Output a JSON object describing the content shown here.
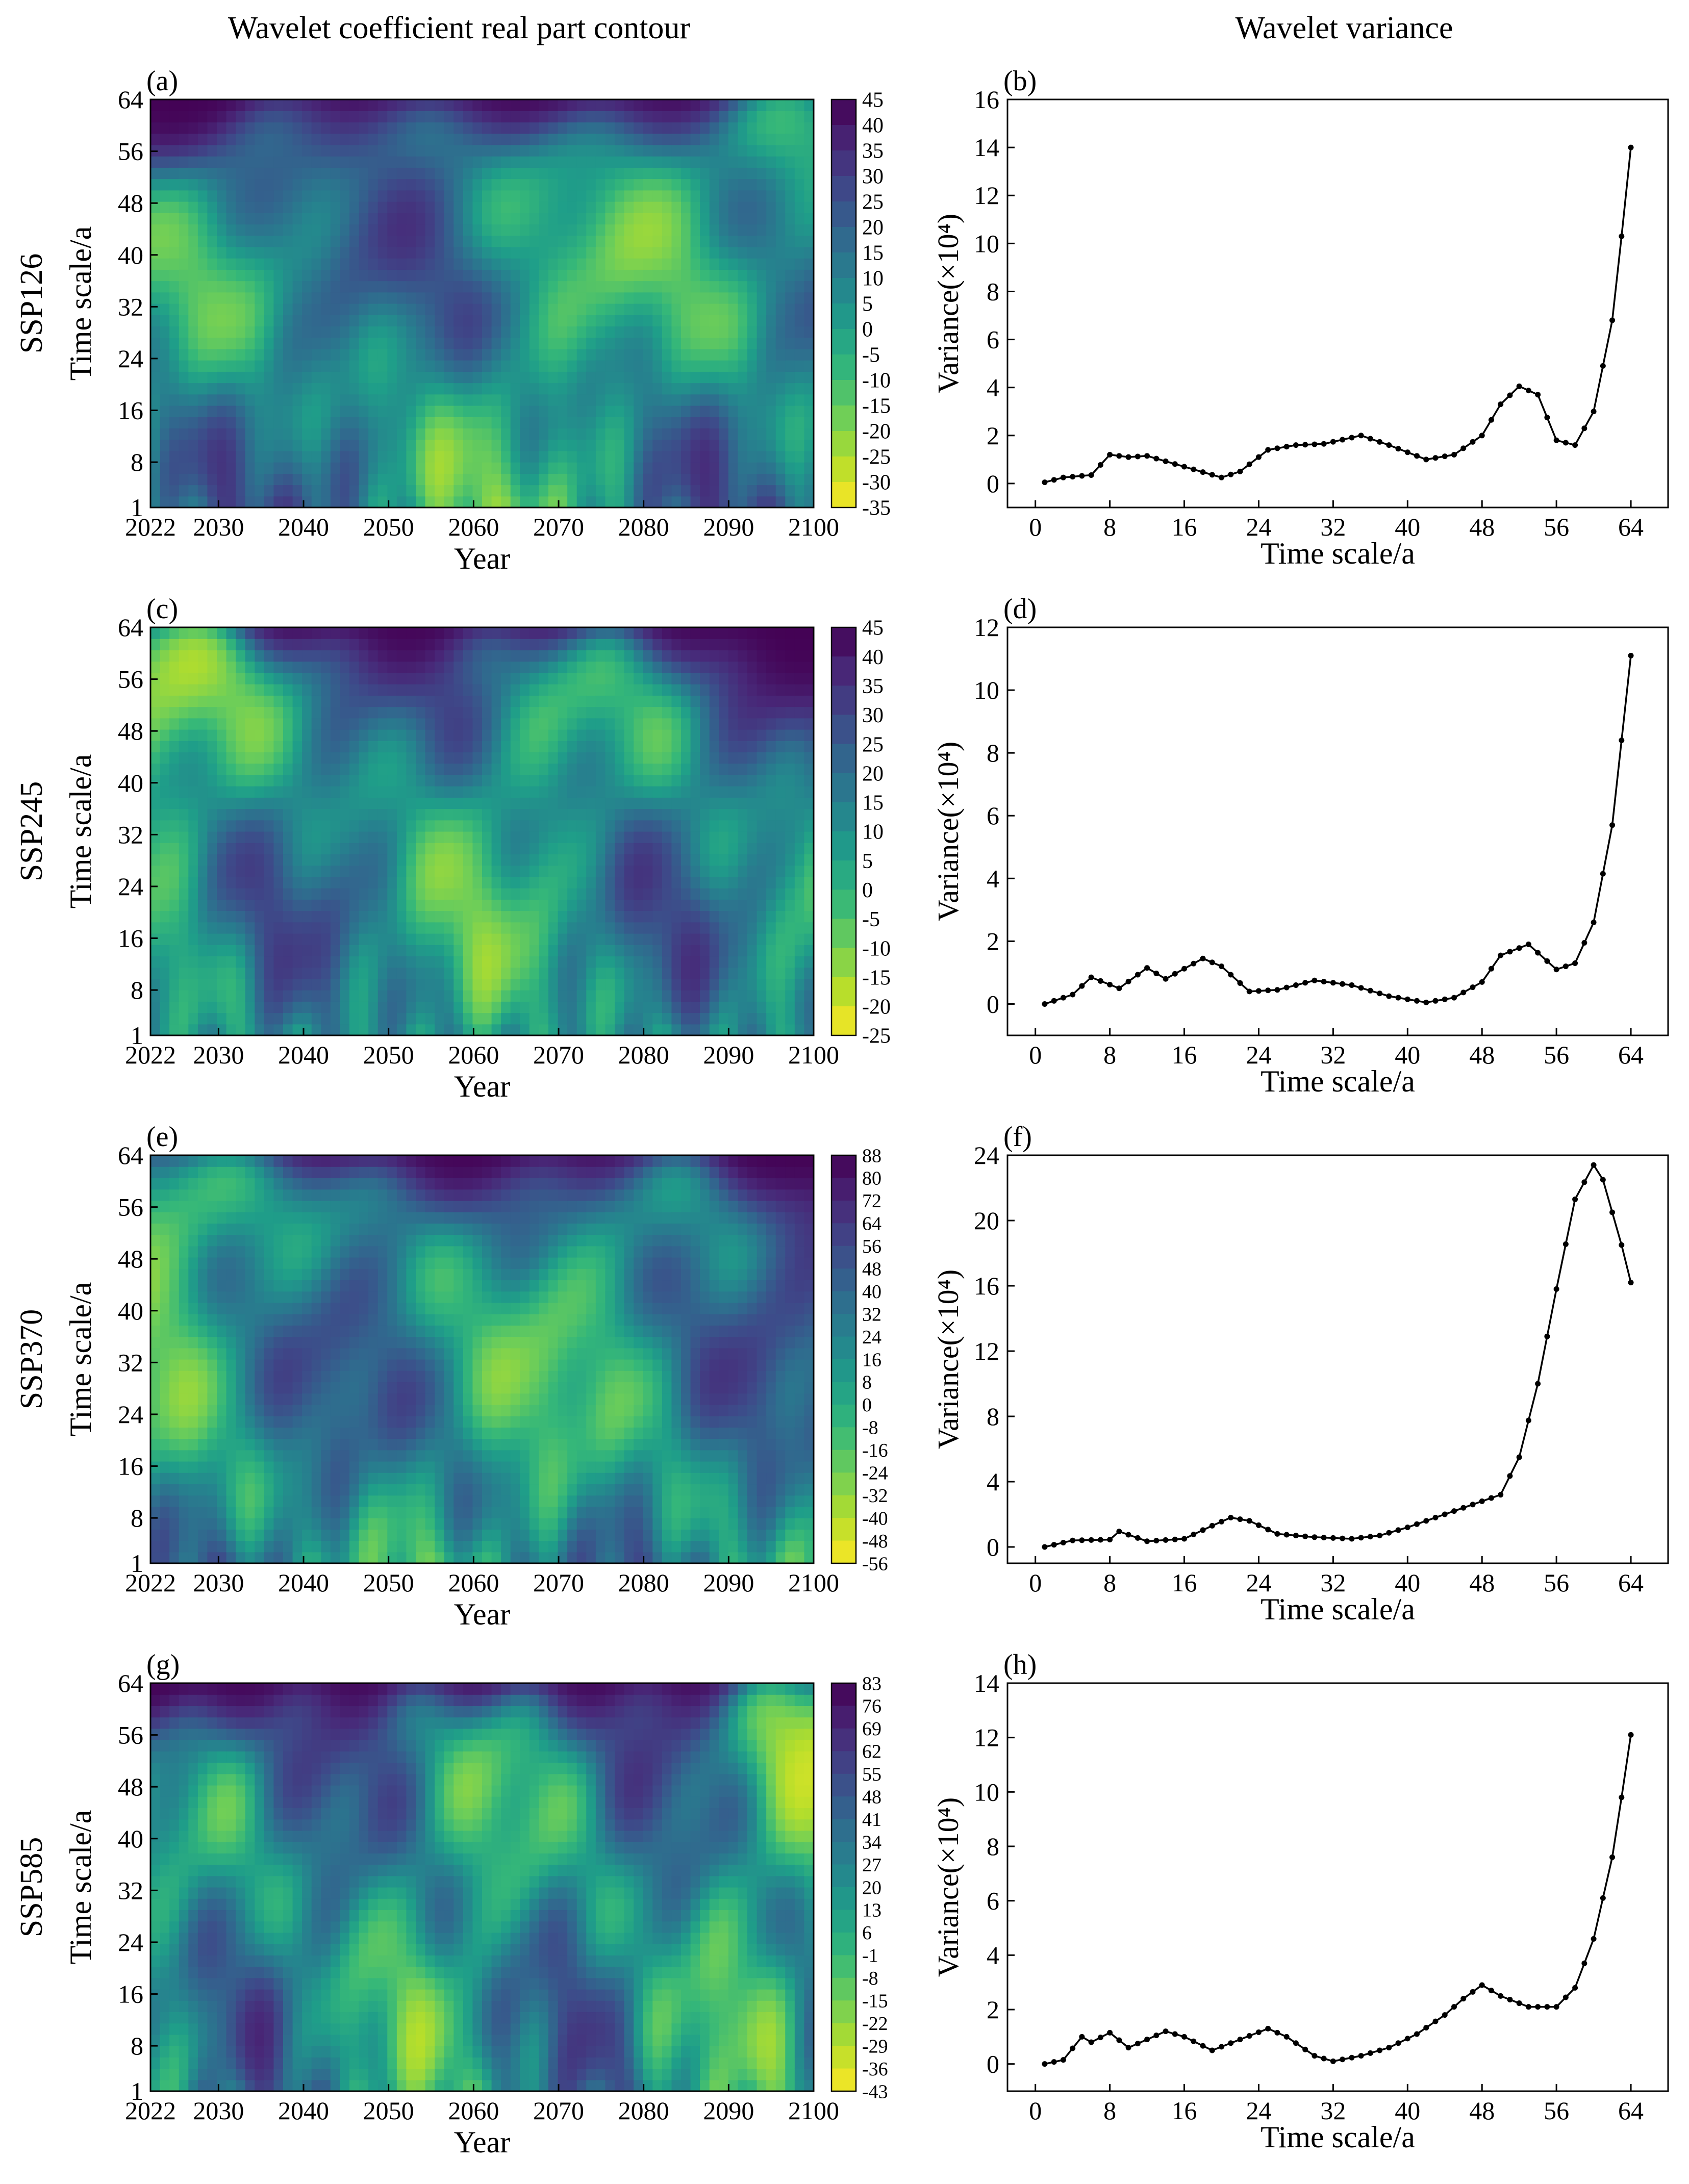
{
  "column_titles": [
    "Wavelet coefficient real part contour",
    "Wavelet variance"
  ],
  "contour_common": {
    "xlabel": "Year",
    "ylabel": "Time scale/a",
    "x_ticks": [
      "2022",
      "2030",
      "2040",
      "2050",
      "2060",
      "2070",
      "2080",
      "2090",
      "2100"
    ],
    "y_ticks": [
      "1",
      "8",
      "16",
      "24",
      "32",
      "40",
      "48",
      "56",
      "64"
    ],
    "colormap": [
      "#fde725",
      "#b5de2b",
      "#6ece58",
      "#35b779",
      "#1f9e89",
      "#26828e",
      "#31688e",
      "#3e4989",
      "#482878",
      "#440154"
    ]
  },
  "variance_common": {
    "xlabel": "Time scale/a",
    "ylabel": "Variance(×10⁴)",
    "x_ticks": [
      "0",
      "8",
      "16",
      "24",
      "32",
      "40",
      "48",
      "56",
      "64"
    ],
    "xlim": [
      -3,
      68
    ]
  },
  "chart_data": [
    {
      "type": "heatmap",
      "panel": "(a)",
      "row_label": "SSP126",
      "xlabel": "Year",
      "ylabel": "Time scale/a",
      "xlim": [
        2022,
        2100
      ],
      "ylim": [
        1,
        64
      ],
      "colorbar_ticks": [
        "45",
        "40",
        "35",
        "30",
        "25",
        "20",
        "15",
        "10",
        "5",
        "0",
        "-5",
        "-10",
        "-15",
        "-20",
        "-25",
        "-30",
        "-35"
      ],
      "clim": [
        -35,
        45
      ]
    },
    {
      "type": "line",
      "panel": "(b)",
      "xlabel": "Time scale/a",
      "ylabel": "Variance(×10⁴)",
      "ylim": [
        -1,
        16
      ],
      "y_ticks": [
        "0",
        "2",
        "4",
        "6",
        "8",
        "10",
        "12",
        "14",
        "16"
      ],
      "keypoints": [
        [
          1,
          0.05
        ],
        [
          3,
          0.25
        ],
        [
          6,
          0.35
        ],
        [
          8,
          1.2
        ],
        [
          10,
          1.1
        ],
        [
          12,
          1.15
        ],
        [
          16,
          0.7
        ],
        [
          20,
          0.25
        ],
        [
          22,
          0.5
        ],
        [
          25,
          1.4
        ],
        [
          28,
          1.6
        ],
        [
          31,
          1.65
        ],
        [
          35,
          2.0
        ],
        [
          38,
          1.6
        ],
        [
          42,
          1.0
        ],
        [
          45,
          1.2
        ],
        [
          48,
          2.0
        ],
        [
          50,
          3.3
        ],
        [
          52,
          4.05
        ],
        [
          54,
          3.7
        ],
        [
          56,
          1.8
        ],
        [
          58,
          1.6
        ],
        [
          60,
          3.0
        ],
        [
          62,
          6.8
        ],
        [
          63,
          10.3
        ],
        [
          64,
          14.0
        ]
      ]
    },
    {
      "type": "heatmap",
      "panel": "(c)",
      "row_label": "SSP245",
      "xlabel": "Year",
      "ylabel": "Time scale/a",
      "xlim": [
        2022,
        2100
      ],
      "ylim": [
        1,
        64
      ],
      "colorbar_ticks": [
        "45",
        "40",
        "35",
        "30",
        "25",
        "20",
        "15",
        "10",
        "5",
        "0",
        "-5",
        "-10",
        "-15",
        "-20",
        "-25"
      ],
      "clim": [
        -25,
        45
      ]
    },
    {
      "type": "line",
      "panel": "(d)",
      "xlabel": "Time scale/a",
      "ylabel": "Variance(×10⁴)",
      "ylim": [
        -1,
        12
      ],
      "y_ticks": [
        "0",
        "2",
        "4",
        "6",
        "8",
        "10",
        "12"
      ],
      "keypoints": [
        [
          1,
          0.0
        ],
        [
          4,
          0.3
        ],
        [
          6,
          0.85
        ],
        [
          9,
          0.5
        ],
        [
          12,
          1.15
        ],
        [
          14,
          0.8
        ],
        [
          18,
          1.45
        ],
        [
          20,
          1.2
        ],
        [
          23,
          0.4
        ],
        [
          26,
          0.45
        ],
        [
          30,
          0.75
        ],
        [
          34,
          0.6
        ],
        [
          38,
          0.25
        ],
        [
          42,
          0.05
        ],
        [
          45,
          0.2
        ],
        [
          48,
          0.7
        ],
        [
          50,
          1.55
        ],
        [
          53,
          1.9
        ],
        [
          56,
          1.1
        ],
        [
          58,
          1.3
        ],
        [
          60,
          2.6
        ],
        [
          62,
          5.7
        ],
        [
          63,
          8.4
        ],
        [
          64,
          11.1
        ]
      ]
    },
    {
      "type": "heatmap",
      "panel": "(e)",
      "row_label": "SSP370",
      "xlabel": "Year",
      "ylabel": "Time scale/a",
      "xlim": [
        2022,
        2100
      ],
      "ylim": [
        1,
        64
      ],
      "colorbar_ticks": [
        "88",
        "80",
        "72",
        "64",
        "56",
        "48",
        "40",
        "32",
        "24",
        "16",
        "8",
        "0",
        "-8",
        "-16",
        "-24",
        "-32",
        "-40",
        "-48",
        "-56"
      ],
      "clim": [
        -56,
        88
      ]
    },
    {
      "type": "line",
      "panel": "(f)",
      "xlabel": "Time scale/a",
      "ylabel": "Variance(×10⁴)",
      "ylim": [
        -1,
        24
      ],
      "y_ticks": [
        "0",
        "4",
        "8",
        "12",
        "16",
        "20",
        "24"
      ],
      "keypoints": [
        [
          1,
          0.0
        ],
        [
          4,
          0.4
        ],
        [
          8,
          0.45
        ],
        [
          9,
          0.95
        ],
        [
          12,
          0.35
        ],
        [
          16,
          0.5
        ],
        [
          19,
          1.3
        ],
        [
          21,
          1.8
        ],
        [
          23,
          1.6
        ],
        [
          26,
          0.8
        ],
        [
          30,
          0.6
        ],
        [
          34,
          0.5
        ],
        [
          37,
          0.7
        ],
        [
          40,
          1.2
        ],
        [
          44,
          2.0
        ],
        [
          48,
          2.8
        ],
        [
          50,
          3.2
        ],
        [
          52,
          5.5
        ],
        [
          54,
          10.0
        ],
        [
          56,
          15.8
        ],
        [
          58,
          21.3
        ],
        [
          60,
          23.4
        ],
        [
          61,
          22.5
        ],
        [
          63,
          18.5
        ],
        [
          64,
          16.2
        ]
      ]
    },
    {
      "type": "heatmap",
      "panel": "(g)",
      "row_label": "SSP585",
      "xlabel": "Year",
      "ylabel": "Time scale/a",
      "xlim": [
        2022,
        2100
      ],
      "ylim": [
        1,
        64
      ],
      "colorbar_ticks": [
        "83",
        "76",
        "69",
        "62",
        "55",
        "48",
        "41",
        "34",
        "27",
        "20",
        "13",
        "6",
        "-1",
        "-8",
        "-15",
        "-22",
        "-29",
        "-36",
        "-43"
      ],
      "clim": [
        -43,
        83
      ]
    },
    {
      "type": "line",
      "panel": "(h)",
      "xlabel": "Time scale/a",
      "ylabel": "Variance(×10⁴)",
      "ylim": [
        -1,
        14
      ],
      "y_ticks": [
        "0",
        "2",
        "4",
        "6",
        "8",
        "10",
        "12",
        "14"
      ],
      "keypoints": [
        [
          1,
          0.0
        ],
        [
          3,
          0.15
        ],
        [
          5,
          1.0
        ],
        [
          6,
          0.8
        ],
        [
          8,
          1.15
        ],
        [
          10,
          0.6
        ],
        [
          12,
          0.9
        ],
        [
          14,
          1.2
        ],
        [
          16,
          1.0
        ],
        [
          19,
          0.5
        ],
        [
          22,
          0.9
        ],
        [
          25,
          1.3
        ],
        [
          27,
          1.0
        ],
        [
          30,
          0.3
        ],
        [
          32,
          0.1
        ],
        [
          35,
          0.3
        ],
        [
          38,
          0.6
        ],
        [
          41,
          1.1
        ],
        [
          44,
          1.8
        ],
        [
          46,
          2.4
        ],
        [
          48,
          2.9
        ],
        [
          50,
          2.5
        ],
        [
          53,
          2.1
        ],
        [
          56,
          2.1
        ],
        [
          58,
          2.8
        ],
        [
          60,
          4.6
        ],
        [
          62,
          7.6
        ],
        [
          63,
          9.8
        ],
        [
          64,
          12.1
        ]
      ]
    }
  ]
}
